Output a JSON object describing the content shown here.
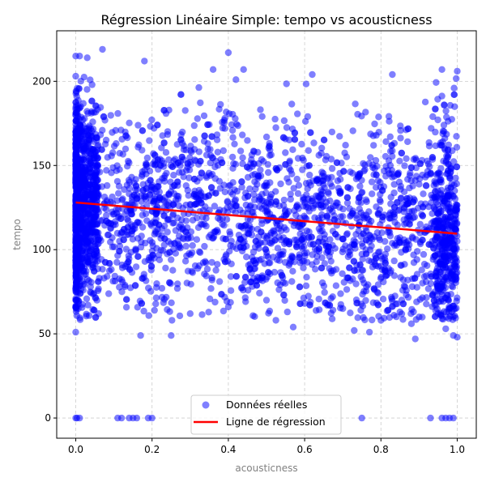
{
  "chart_data": {
    "type": "scatter",
    "title": "Régression Linéaire Simple: tempo vs acousticness",
    "xlabel": "acousticness",
    "ylabel": "tempo",
    "xlim": [
      -0.05,
      1.05
    ],
    "ylim": [
      -12,
      230
    ],
    "xticks": [
      0.0,
      0.2,
      0.4,
      0.6,
      0.8,
      1.0
    ],
    "xtick_labels": [
      "0.0",
      "0.2",
      "0.4",
      "0.6",
      "0.8",
      "1.0"
    ],
    "yticks": [
      0,
      50,
      100,
      150,
      200
    ],
    "ytick_labels": [
      "0",
      "50",
      "100",
      "150",
      "200"
    ],
    "grid": true,
    "legend_position": "bottom-center",
    "series": [
      {
        "name": "Données réelles",
        "kind": "scatter",
        "color": "#0000ff",
        "alpha": 0.5,
        "points": [
          [
            0.0,
            0
          ],
          [
            0.003,
            0
          ],
          [
            0.01,
            0
          ],
          [
            0.11,
            0
          ],
          [
            0.12,
            0
          ],
          [
            0.14,
            0
          ],
          [
            0.15,
            0
          ],
          [
            0.16,
            0
          ],
          [
            0.19,
            0
          ],
          [
            0.2,
            0
          ],
          [
            0.75,
            0
          ],
          [
            0.93,
            0
          ],
          [
            0.96,
            0
          ],
          [
            0.97,
            0
          ],
          [
            0.98,
            0
          ],
          [
            0.99,
            0
          ],
          [
            0.0,
            215
          ],
          [
            0.01,
            215
          ],
          [
            0.03,
            214
          ],
          [
            0.07,
            219
          ],
          [
            0.18,
            212
          ],
          [
            0.4,
            217
          ],
          [
            0.42,
            201
          ],
          [
            0.36,
            207
          ],
          [
            0.44,
            207
          ],
          [
            0.62,
            204
          ],
          [
            0.83,
            204
          ],
          [
            0.96,
            207
          ],
          [
            1.0,
            206
          ],
          [
            0.0,
            51
          ],
          [
            0.06,
            62
          ],
          [
            0.17,
            49
          ],
          [
            0.25,
            49
          ],
          [
            0.57,
            54
          ],
          [
            0.73,
            52
          ],
          [
            0.77,
            51
          ],
          [
            0.88,
            56
          ],
          [
            0.89,
            47
          ],
          [
            0.97,
            53
          ],
          [
            0.99,
            49
          ],
          [
            1.0,
            48
          ],
          [
            0.85,
            63
          ],
          [
            0.9,
            60
          ],
          [
            0.3,
            62
          ],
          [
            0.4,
            66
          ],
          [
            0.5,
            70
          ],
          [
            0.6,
            68
          ],
          [
            0.7,
            65
          ],
          [
            0.8,
            58
          ],
          [
            0.95,
            62
          ]
        ]
      },
      {
        "name": "Ligne de régression",
        "kind": "line",
        "color": "#ff0000",
        "x": [
          0.0,
          1.0
        ],
        "y": [
          128,
          109.5
        ]
      }
    ]
  }
}
